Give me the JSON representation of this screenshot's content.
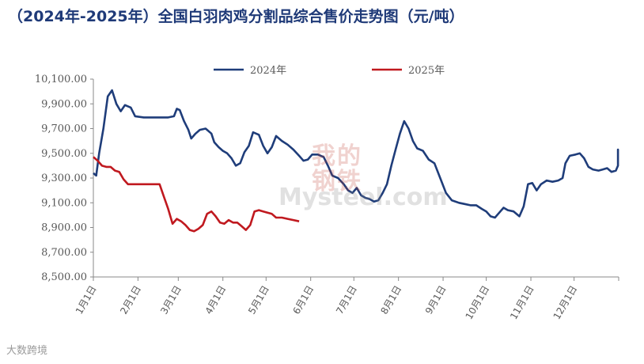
{
  "chart_data": {
    "type": "line",
    "title": "（2024年-2025年）全国白羽肉鸡分割品综合售价走势图（元/吨）",
    "xlabel": "",
    "ylabel": "",
    "x_tick_labels": [
      "1月1日",
      "2月1日",
      "3月1日",
      "4月1日",
      "5月1日",
      "6月1日",
      "7月1日",
      "8月1日",
      "9月1日",
      "10月1日",
      "11月1日",
      "12月1日"
    ],
    "y_tick_labels": [
      "10,100.00",
      "9,900.00",
      "9,700.00",
      "9,500.00",
      "9,300.00",
      "9,100.00",
      "8,900.00",
      "8,700.00",
      "8,500.00"
    ],
    "ylim": [
      8500,
      10100
    ],
    "grid": false,
    "legend_position": "top-center",
    "series": [
      {
        "name": "2024年",
        "color": "#1f3d7a",
        "points": [
          [
            "01-01",
            9340
          ],
          [
            "01-03",
            9320
          ],
          [
            "01-05",
            9500
          ],
          [
            "01-08",
            9700
          ],
          [
            "01-11",
            9960
          ],
          [
            "01-14",
            10010
          ],
          [
            "01-17",
            9900
          ],
          [
            "01-20",
            9840
          ],
          [
            "01-23",
            9890
          ],
          [
            "01-27",
            9870
          ],
          [
            "01-30",
            9800
          ],
          [
            "02-05",
            9790
          ],
          [
            "02-15",
            9790
          ],
          [
            "02-22",
            9790
          ],
          [
            "02-26",
            9800
          ],
          [
            "02-28",
            9860
          ],
          [
            "03-02",
            9850
          ],
          [
            "03-05",
            9760
          ],
          [
            "03-08",
            9690
          ],
          [
            "03-10",
            9620
          ],
          [
            "03-13",
            9660
          ],
          [
            "03-16",
            9690
          ],
          [
            "03-20",
            9700
          ],
          [
            "03-24",
            9660
          ],
          [
            "03-26",
            9590
          ],
          [
            "03-29",
            9550
          ],
          [
            "04-01",
            9520
          ],
          [
            "04-04",
            9500
          ],
          [
            "04-07",
            9460
          ],
          [
            "04-10",
            9400
          ],
          [
            "04-13",
            9420
          ],
          [
            "04-16",
            9510
          ],
          [
            "04-19",
            9560
          ],
          [
            "04-22",
            9670
          ],
          [
            "04-26",
            9650
          ],
          [
            "04-29",
            9560
          ],
          [
            "05-02",
            9500
          ],
          [
            "05-05",
            9550
          ],
          [
            "05-08",
            9640
          ],
          [
            "05-12",
            9600
          ],
          [
            "05-16",
            9570
          ],
          [
            "05-20",
            9530
          ],
          [
            "05-24",
            9480
          ],
          [
            "05-27",
            9440
          ],
          [
            "05-30",
            9450
          ],
          [
            "06-02",
            9490
          ],
          [
            "06-06",
            9490
          ],
          [
            "06-10",
            9470
          ],
          [
            "06-13",
            9400
          ],
          [
            "06-16",
            9320
          ],
          [
            "06-20",
            9300
          ],
          [
            "06-24",
            9250
          ],
          [
            "06-27",
            9200
          ],
          [
            "06-30",
            9180
          ],
          [
            "07-03",
            9220
          ],
          [
            "07-06",
            9160
          ],
          [
            "07-09",
            9140
          ],
          [
            "07-12",
            9130
          ],
          [
            "07-15",
            9110
          ],
          [
            "07-18",
            9120
          ],
          [
            "07-21",
            9180
          ],
          [
            "07-24",
            9250
          ],
          [
            "07-27",
            9400
          ],
          [
            "07-30",
            9530
          ],
          [
            "08-02",
            9660
          ],
          [
            "08-05",
            9760
          ],
          [
            "08-08",
            9700
          ],
          [
            "08-11",
            9600
          ],
          [
            "08-14",
            9540
          ],
          [
            "08-18",
            9520
          ],
          [
            "08-22",
            9450
          ],
          [
            "08-26",
            9420
          ],
          [
            "08-30",
            9300
          ],
          [
            "09-03",
            9180
          ],
          [
            "09-07",
            9120
          ],
          [
            "09-12",
            9100
          ],
          [
            "09-16",
            9090
          ],
          [
            "09-20",
            9080
          ],
          [
            "09-24",
            9080
          ],
          [
            "09-28",
            9050
          ],
          [
            "10-01",
            9030
          ],
          [
            "10-04",
            8990
          ],
          [
            "10-07",
            8980
          ],
          [
            "10-10",
            9020
          ],
          [
            "10-13",
            9060
          ],
          [
            "10-16",
            9040
          ],
          [
            "10-20",
            9030
          ],
          [
            "10-24",
            8990
          ],
          [
            "10-27",
            9070
          ],
          [
            "10-30",
            9250
          ],
          [
            "11-02",
            9260
          ],
          [
            "11-05",
            9200
          ],
          [
            "11-08",
            9250
          ],
          [
            "11-12",
            9280
          ],
          [
            "11-16",
            9270
          ],
          [
            "11-20",
            9280
          ],
          [
            "11-23",
            9300
          ],
          [
            "11-25",
            9420
          ],
          [
            "11-28",
            9480
          ],
          [
            "12-02",
            9490
          ],
          [
            "12-05",
            9500
          ],
          [
            "12-08",
            9460
          ],
          [
            "12-11",
            9390
          ],
          [
            "12-14",
            9370
          ],
          [
            "12-18",
            9360
          ],
          [
            "12-21",
            9370
          ],
          [
            "12-24",
            9380
          ],
          [
            "12-27",
            9350
          ],
          [
            "12-30",
            9360
          ],
          [
            "01-02",
            9400
          ],
          [
            "01-05",
            9530
          ],
          [
            "01-08",
            9510
          ],
          [
            "01-12",
            9470
          ],
          [
            "01-15",
            9460
          ]
        ]
      },
      {
        "name": "2025年",
        "color": "#c0191f",
        "points": [
          [
            "01-01",
            9470
          ],
          [
            "01-04",
            9440
          ],
          [
            "01-07",
            9400
          ],
          [
            "01-10",
            9390
          ],
          [
            "01-13",
            9390
          ],
          [
            "01-16",
            9360
          ],
          [
            "01-19",
            9350
          ],
          [
            "01-22",
            9290
          ],
          [
            "01-25",
            9250
          ],
          [
            "01-28",
            9250
          ],
          [
            "02-05",
            9250
          ],
          [
            "02-12",
            9250
          ],
          [
            "02-16",
            9250
          ],
          [
            "02-19",
            9150
          ],
          [
            "02-22",
            9050
          ],
          [
            "02-25",
            8930
          ],
          [
            "02-28",
            8970
          ],
          [
            "03-03",
            8950
          ],
          [
            "03-06",
            8920
          ],
          [
            "03-09",
            8880
          ],
          [
            "03-12",
            8870
          ],
          [
            "03-15",
            8890
          ],
          [
            "03-18",
            8920
          ],
          [
            "03-21",
            9010
          ],
          [
            "03-24",
            9030
          ],
          [
            "03-27",
            8990
          ],
          [
            "03-30",
            8940
          ],
          [
            "04-02",
            8930
          ],
          [
            "04-05",
            8960
          ],
          [
            "04-08",
            8940
          ],
          [
            "04-11",
            8940
          ],
          [
            "04-14",
            8910
          ],
          [
            "04-17",
            8880
          ],
          [
            "04-20",
            8920
          ],
          [
            "04-23",
            9030
          ],
          [
            "04-26",
            9040
          ],
          [
            "04-29",
            9030
          ],
          [
            "05-02",
            9020
          ],
          [
            "05-05",
            9010
          ],
          [
            "05-08",
            8980
          ],
          [
            "05-12",
            8980
          ],
          [
            "05-16",
            8970
          ],
          [
            "05-20",
            8960
          ],
          [
            "05-24",
            8950
          ]
        ]
      }
    ]
  },
  "watermark": {
    "line1": "我的",
    "line2": "钢铁",
    "line3": "Mysteel.com"
  },
  "source_mark": "大数跨境"
}
